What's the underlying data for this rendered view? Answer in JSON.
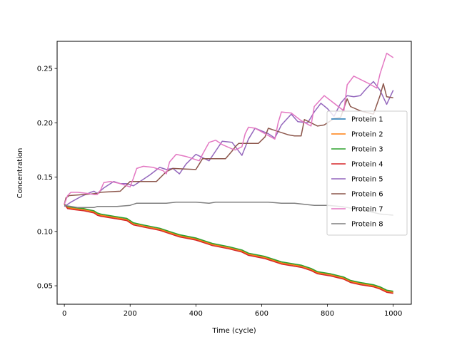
{
  "chart_data": {
    "type": "line",
    "title": "",
    "xlabel": "Time (cycle)",
    "ylabel": "Concentration",
    "xlim": [
      -22,
      1055
    ],
    "ylim": [
      0.033,
      0.275
    ],
    "xticks": [
      0,
      200,
      400,
      600,
      800,
      1000
    ],
    "xtick_labels": [
      "0",
      "200",
      "400",
      "600",
      "800",
      "1000"
    ],
    "yticks": [
      0.05,
      0.1,
      0.15,
      0.2,
      0.25
    ],
    "ytick_labels": [
      "0.05",
      "0.10",
      "0.15",
      "0.20",
      "0.25"
    ],
    "grid": false,
    "legend_position": "center-right",
    "series": [
      {
        "name": "Protein 1",
        "color": "#1f77b4",
        "x": [
          0,
          10,
          30,
          60,
          90,
          100,
          110,
          150,
          190,
          210,
          240,
          290,
          330,
          350,
          400,
          430,
          450,
          500,
          540,
          560,
          610,
          640,
          660,
          720,
          750,
          770,
          810,
          850,
          870,
          900,
          940,
          960,
          980,
          1000
        ],
        "y": [
          0.125,
          0.122,
          0.121,
          0.12,
          0.118,
          0.116,
          0.115,
          0.113,
          0.111,
          0.107,
          0.105,
          0.102,
          0.098,
          0.096,
          0.093,
          0.09,
          0.088,
          0.085,
          0.082,
          0.079,
          0.076,
          0.073,
          0.071,
          0.068,
          0.065,
          0.062,
          0.06,
          0.057,
          0.054,
          0.052,
          0.05,
          0.048,
          0.045,
          0.044
        ]
      },
      {
        "name": "Protein 2",
        "color": "#ff7f0e",
        "x": [
          0,
          10,
          30,
          60,
          90,
          100,
          110,
          150,
          190,
          210,
          240,
          290,
          330,
          350,
          400,
          430,
          450,
          500,
          540,
          560,
          610,
          640,
          660,
          720,
          750,
          770,
          810,
          850,
          870,
          900,
          940,
          960,
          980,
          1000
        ],
        "y": [
          0.125,
          0.122,
          0.121,
          0.12,
          0.118,
          0.116,
          0.115,
          0.113,
          0.111,
          0.107,
          0.105,
          0.102,
          0.098,
          0.096,
          0.093,
          0.09,
          0.088,
          0.085,
          0.082,
          0.079,
          0.076,
          0.073,
          0.071,
          0.068,
          0.065,
          0.062,
          0.06,
          0.057,
          0.054,
          0.052,
          0.05,
          0.048,
          0.045,
          0.044
        ]
      },
      {
        "name": "Protein 3",
        "color": "#2ca02c",
        "x": [
          0,
          10,
          30,
          60,
          90,
          100,
          110,
          150,
          190,
          210,
          240,
          290,
          330,
          350,
          400,
          430,
          450,
          500,
          540,
          560,
          610,
          640,
          660,
          720,
          750,
          770,
          810,
          850,
          870,
          900,
          940,
          960,
          980,
          1000
        ],
        "y": [
          0.125,
          0.123,
          0.122,
          0.121,
          0.119,
          0.117,
          0.116,
          0.114,
          0.112,
          0.108,
          0.106,
          0.103,
          0.099,
          0.097,
          0.094,
          0.091,
          0.089,
          0.086,
          0.083,
          0.08,
          0.077,
          0.074,
          0.072,
          0.069,
          0.066,
          0.063,
          0.061,
          0.058,
          0.055,
          0.053,
          0.051,
          0.049,
          0.046,
          0.045
        ]
      },
      {
        "name": "Protein 4",
        "color": "#d62728",
        "x": [
          0,
          10,
          30,
          60,
          90,
          100,
          110,
          150,
          190,
          210,
          240,
          290,
          330,
          350,
          400,
          430,
          450,
          500,
          540,
          560,
          610,
          640,
          660,
          720,
          750,
          770,
          810,
          850,
          870,
          900,
          940,
          960,
          980,
          1000
        ],
        "y": [
          0.125,
          0.121,
          0.12,
          0.119,
          0.117,
          0.115,
          0.114,
          0.112,
          0.11,
          0.106,
          0.104,
          0.101,
          0.097,
          0.095,
          0.092,
          0.089,
          0.087,
          0.084,
          0.081,
          0.078,
          0.075,
          0.072,
          0.07,
          0.067,
          0.064,
          0.061,
          0.059,
          0.056,
          0.053,
          0.051,
          0.049,
          0.047,
          0.044,
          0.043
        ]
      },
      {
        "name": "Protein 5",
        "color": "#9467bd",
        "x": [
          0,
          20,
          50,
          80,
          90,
          100,
          120,
          150,
          170,
          190,
          210,
          230,
          260,
          290,
          310,
          330,
          350,
          370,
          400,
          420,
          440,
          460,
          480,
          510,
          540,
          560,
          580,
          620,
          640,
          660,
          690,
          710,
          740,
          760,
          780,
          800,
          820,
          840,
          860,
          880,
          900,
          920,
          940,
          960,
          980,
          1000
        ],
        "y": [
          0.123,
          0.127,
          0.132,
          0.136,
          0.137,
          0.135,
          0.14,
          0.146,
          0.144,
          0.144,
          0.142,
          0.146,
          0.152,
          0.159,
          0.157,
          0.158,
          0.153,
          0.162,
          0.171,
          0.168,
          0.165,
          0.174,
          0.183,
          0.182,
          0.17,
          0.185,
          0.195,
          0.19,
          0.186,
          0.198,
          0.208,
          0.201,
          0.2,
          0.21,
          0.218,
          0.213,
          0.206,
          0.218,
          0.225,
          0.224,
          0.225,
          0.232,
          0.238,
          0.23,
          0.217,
          0.23
        ]
      },
      {
        "name": "Protein 6",
        "color": "#8c564b",
        "x": [
          0,
          5,
          15,
          60,
          100,
          110,
          170,
          190,
          200,
          210,
          280,
          300,
          310,
          330,
          400,
          410,
          420,
          490,
          510,
          520,
          530,
          590,
          610,
          620,
          630,
          680,
          700,
          720,
          730,
          770,
          790,
          800,
          820,
          840,
          860,
          870,
          900,
          940,
          960,
          970,
          980,
          1000
        ],
        "y": [
          0.125,
          0.131,
          0.133,
          0.134,
          0.135,
          0.136,
          0.137,
          0.143,
          0.146,
          0.146,
          0.146,
          0.152,
          0.155,
          0.158,
          0.157,
          0.162,
          0.167,
          0.167,
          0.174,
          0.178,
          0.181,
          0.181,
          0.187,
          0.195,
          0.194,
          0.189,
          0.188,
          0.188,
          0.203,
          0.197,
          0.198,
          0.2,
          0.204,
          0.205,
          0.222,
          0.215,
          0.211,
          0.208,
          0.225,
          0.236,
          0.224,
          0.223
        ]
      },
      {
        "name": "Protein 7",
        "color": "#e377c2",
        "x": [
          0,
          10,
          20,
          40,
          70,
          90,
          100,
          110,
          120,
          140,
          170,
          200,
          210,
          220,
          240,
          270,
          300,
          310,
          320,
          340,
          370,
          410,
          420,
          440,
          460,
          480,
          510,
          520,
          540,
          550,
          560,
          580,
          610,
          640,
          650,
          660,
          690,
          720,
          750,
          760,
          790,
          820,
          850,
          860,
          880,
          920,
          950,
          960,
          980,
          1000
        ],
        "y": [
          0.125,
          0.133,
          0.136,
          0.136,
          0.135,
          0.134,
          0.134,
          0.138,
          0.145,
          0.146,
          0.144,
          0.141,
          0.149,
          0.158,
          0.16,
          0.159,
          0.156,
          0.153,
          0.164,
          0.171,
          0.169,
          0.165,
          0.171,
          0.182,
          0.184,
          0.18,
          0.176,
          0.175,
          0.178,
          0.19,
          0.196,
          0.195,
          0.19,
          0.185,
          0.2,
          0.21,
          0.209,
          0.202,
          0.197,
          0.215,
          0.225,
          0.218,
          0.211,
          0.235,
          0.243,
          0.237,
          0.232,
          0.245,
          0.264,
          0.26
        ]
      },
      {
        "name": "Protein 8",
        "color": "#7f7f7f",
        "x": [
          0,
          20,
          40,
          70,
          90,
          100,
          130,
          160,
          200,
          220,
          280,
          310,
          340,
          360,
          400,
          440,
          460,
          500,
          540,
          580,
          620,
          660,
          700,
          760,
          800,
          840,
          880,
          920,
          960,
          1000
        ],
        "y": [
          0.124,
          0.123,
          0.122,
          0.122,
          0.122,
          0.123,
          0.123,
          0.123,
          0.124,
          0.126,
          0.126,
          0.126,
          0.127,
          0.127,
          0.127,
          0.126,
          0.127,
          0.127,
          0.127,
          0.127,
          0.127,
          0.126,
          0.126,
          0.124,
          0.124,
          0.123,
          0.121,
          0.119,
          0.116,
          0.115
        ]
      }
    ]
  }
}
